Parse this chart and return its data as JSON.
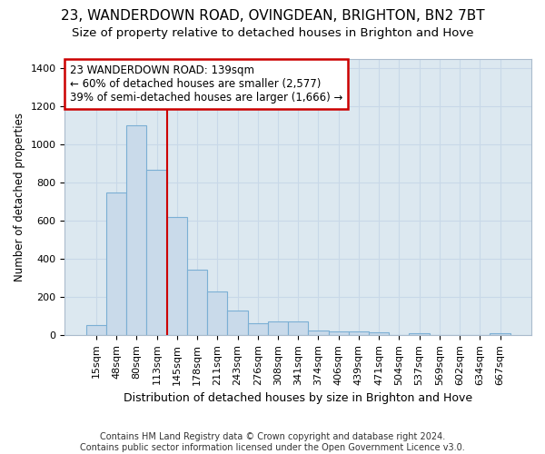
{
  "title1": "23, WANDERDOWN ROAD, OVINGDEAN, BRIGHTON, BN2 7BT",
  "title2": "Size of property relative to detached houses in Brighton and Hove",
  "xlabel": "Distribution of detached houses by size in Brighton and Hove",
  "ylabel": "Number of detached properties",
  "footnote": "Contains HM Land Registry data © Crown copyright and database right 2024.\nContains public sector information licensed under the Open Government Licence v3.0.",
  "categories": [
    "15sqm",
    "48sqm",
    "80sqm",
    "113sqm",
    "145sqm",
    "178sqm",
    "211sqm",
    "243sqm",
    "276sqm",
    "308sqm",
    "341sqm",
    "374sqm",
    "406sqm",
    "439sqm",
    "471sqm",
    "504sqm",
    "537sqm",
    "569sqm",
    "602sqm",
    "634sqm",
    "667sqm"
  ],
  "values": [
    50,
    750,
    1100,
    870,
    620,
    345,
    230,
    130,
    60,
    70,
    70,
    25,
    20,
    18,
    12,
    2,
    8,
    2,
    2,
    2,
    8
  ],
  "bar_color": "#c9daea",
  "bar_edge_color": "#7bafd4",
  "vline_x": 3.5,
  "vline_color": "#cc0000",
  "annotation_line1": "23 WANDERDOWN ROAD: 139sqm",
  "annotation_line2": "← 60% of detached houses are smaller (2,577)",
  "annotation_line3": "39% of semi-detached houses are larger (1,666) →",
  "annotation_box_color": "#ffffff",
  "annotation_border_color": "#cc0000",
  "grid_color": "#c8d8e8",
  "plot_bg_color": "#dce8f0",
  "fig_bg_color": "#ffffff",
  "ylim": [
    0,
    1450
  ],
  "yticks": [
    0,
    200,
    400,
    600,
    800,
    1000,
    1200,
    1400
  ],
  "title1_fontsize": 11,
  "title2_fontsize": 9.5,
  "xlabel_fontsize": 9,
  "ylabel_fontsize": 8.5,
  "tick_fontsize": 8,
  "annot_fontsize": 8.5,
  "footnote_fontsize": 7
}
